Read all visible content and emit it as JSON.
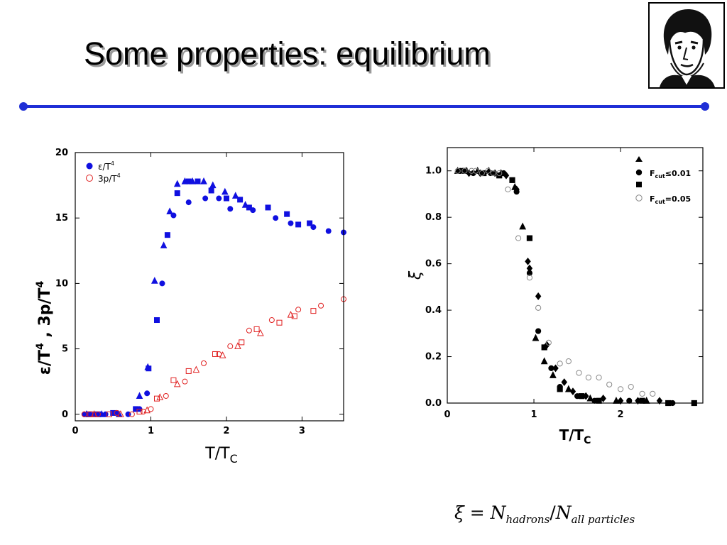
{
  "slide": {
    "title": "Some properties: equilibrium",
    "formula": {
      "lhs": "ξ",
      "equals": "=",
      "n1": "N",
      "sub1": "hadrons",
      "slash": "/",
      "n2": "N",
      "sub2": "all  particles"
    },
    "accent_color": "#1f2fd6",
    "logo_icon": "goethe-portrait-icon"
  },
  "chart_data": [
    {
      "type": "scatter",
      "xlabel": "T/T",
      "xlabel_sub": "C",
      "ylabel": "ε/T , 3p/T",
      "ylabel_sup": "4",
      "xlim": [
        0,
        3.55
      ],
      "ylim": [
        -0.5,
        20
      ],
      "xticks": [
        0,
        1,
        2,
        3
      ],
      "yticks": [
        0,
        5,
        10,
        15,
        20
      ],
      "legend_position": "top-left",
      "grid": false,
      "series": [
        {
          "name": "ε/T",
          "name_sup": "4",
          "color": "#1010e0",
          "filled": true,
          "groups": [
            {
              "marker": "circle",
              "points": [
                [
                  0.12,
                  0
                ],
                [
                  0.25,
                  0
                ],
                [
                  0.4,
                  0
                ],
                [
                  0.55,
                  0.1
                ],
                [
                  0.7,
                  0
                ],
                [
                  0.85,
                  0.4
                ],
                [
                  0.95,
                  1.6
                ],
                [
                  1.15,
                  10
                ],
                [
                  1.3,
                  15.2
                ],
                [
                  1.5,
                  16.2
                ],
                [
                  1.72,
                  16.5
                ],
                [
                  1.9,
                  16.5
                ],
                [
                  2.05,
                  15.7
                ],
                [
                  2.35,
                  15.6
                ],
                [
                  2.65,
                  15
                ],
                [
                  2.85,
                  14.6
                ],
                [
                  3.15,
                  14.3
                ],
                [
                  3.35,
                  14
                ],
                [
                  3.55,
                  13.9
                ]
              ]
            },
            {
              "marker": "square",
              "points": [
                [
                  0.18,
                  0
                ],
                [
                  0.3,
                  0
                ],
                [
                  0.5,
                  0.1
                ],
                [
                  0.8,
                  0.4
                ],
                [
                  0.97,
                  3.5
                ],
                [
                  1.08,
                  7.2
                ],
                [
                  1.22,
                  13.7
                ],
                [
                  1.35,
                  16.9
                ],
                [
                  1.5,
                  17.8
                ],
                [
                  1.62,
                  17.8
                ],
                [
                  1.8,
                  17.1
                ],
                [
                  2.0,
                  16.5
                ],
                [
                  2.18,
                  16.4
                ],
                [
                  2.3,
                  15.8
                ],
                [
                  2.55,
                  15.8
                ],
                [
                  2.8,
                  15.3
                ],
                [
                  2.95,
                  14.5
                ],
                [
                  3.1,
                  14.6
                ]
              ]
            },
            {
              "marker": "triangle",
              "points": [
                [
                  0.15,
                  0
                ],
                [
                  0.35,
                  0
                ],
                [
                  0.58,
                  0
                ],
                [
                  0.85,
                  1.4
                ],
                [
                  0.96,
                  3.6
                ],
                [
                  1.05,
                  10.2
                ],
                [
                  1.17,
                  12.9
                ],
                [
                  1.25,
                  15.5
                ],
                [
                  1.35,
                  17.6
                ],
                [
                  1.45,
                  17.8
                ],
                [
                  1.55,
                  17.8
                ],
                [
                  1.7,
                  17.8
                ],
                [
                  1.82,
                  17.5
                ],
                [
                  1.98,
                  17
                ],
                [
                  2.12,
                  16.7
                ],
                [
                  2.25,
                  16
                ]
              ]
            }
          ]
        },
        {
          "name": "3p/T",
          "name_sup": "4",
          "color": "#e02020",
          "filled": false,
          "groups": [
            {
              "marker": "circle",
              "points": [
                [
                  0.12,
                  0
                ],
                [
                  0.3,
                  0
                ],
                [
                  0.55,
                  0.1
                ],
                [
                  0.75,
                  0
                ],
                [
                  0.9,
                  0.2
                ],
                [
                  1.0,
                  0.4
                ],
                [
                  1.2,
                  1.4
                ],
                [
                  1.45,
                  2.5
                ],
                [
                  1.7,
                  3.9
                ],
                [
                  1.9,
                  4.6
                ],
                [
                  2.05,
                  5.2
                ],
                [
                  2.3,
                  6.4
                ],
                [
                  2.6,
                  7.2
                ],
                [
                  2.95,
                  8
                ],
                [
                  3.25,
                  8.3
                ],
                [
                  3.55,
                  8.8
                ]
              ]
            },
            {
              "marker": "square",
              "points": [
                [
                  0.2,
                  0
                ],
                [
                  0.45,
                  0
                ],
                [
                  0.85,
                  0.2
                ],
                [
                  1.08,
                  1.2
                ],
                [
                  1.3,
                  2.6
                ],
                [
                  1.5,
                  3.3
                ],
                [
                  1.85,
                  4.6
                ],
                [
                  2.2,
                  5.5
                ],
                [
                  2.4,
                  6.5
                ],
                [
                  2.7,
                  7
                ],
                [
                  2.9,
                  7.5
                ],
                [
                  3.15,
                  7.9
                ]
              ]
            },
            {
              "marker": "triangle",
              "points": [
                [
                  0.25,
                  0
                ],
                [
                  0.6,
                  0
                ],
                [
                  0.95,
                  0.3
                ],
                [
                  1.12,
                  1.3
                ],
                [
                  1.35,
                  2.3
                ],
                [
                  1.6,
                  3.4
                ],
                [
                  1.95,
                  4.5
                ],
                [
                  2.15,
                  5.2
                ],
                [
                  2.45,
                  6.2
                ],
                [
                  2.85,
                  7.6
                ]
              ]
            }
          ]
        }
      ]
    },
    {
      "type": "scatter",
      "xlabel": "T/T",
      "xlabel_sub": "C",
      "ylabel": "ξ",
      "xlim": [
        0,
        2.95
      ],
      "ylim": [
        0,
        1.1
      ],
      "xticks": [
        0,
        1,
        2
      ],
      "yticks": [
        "0.0",
        "0.2",
        "0.4",
        "0.6",
        "0.8",
        "1.0"
      ],
      "legend_position": "top-right",
      "grid": false,
      "legend": [
        {
          "marker": "triangle",
          "filled": true,
          "label": ""
        },
        {
          "marker": "circle",
          "filled": true,
          "label": "F",
          "sub": "cut",
          "suffix": "≤0.01"
        },
        {
          "marker": "square",
          "filled": true,
          "label": ""
        },
        {
          "marker": "circle",
          "filled": false,
          "label": "F",
          "sub": "cut",
          "suffix": "=0.05"
        }
      ],
      "series": [
        {
          "color": "#000000",
          "filled": true,
          "groups": [
            {
              "marker": "diamond",
              "points": [
                [
                  0.25,
                  0.99
                ],
                [
                  0.38,
                  0.99
                ],
                [
                  0.55,
                  0.99
                ],
                [
                  0.68,
                  0.98
                ],
                [
                  0.8,
                  0.92
                ],
                [
                  0.93,
                  0.61
                ],
                [
                  0.95,
                  0.58
                ],
                [
                  1.05,
                  0.46
                ],
                [
                  1.15,
                  0.25
                ],
                [
                  1.25,
                  0.15
                ],
                [
                  1.35,
                  0.09
                ],
                [
                  1.45,
                  0.05
                ],
                [
                  1.6,
                  0.03
                ],
                [
                  1.8,
                  0.02
                ],
                [
                  2.0,
                  0.01
                ],
                [
                  2.2,
                  0.01
                ],
                [
                  2.45,
                  0.01
                ]
              ]
            },
            {
              "marker": "circle",
              "points": [
                [
                  0.15,
                  1.0
                ],
                [
                  0.3,
                  0.99
                ],
                [
                  0.5,
                  0.99
                ],
                [
                  0.65,
                  0.99
                ],
                [
                  0.8,
                  0.91
                ],
                [
                  0.95,
                  0.56
                ],
                [
                  1.05,
                  0.31
                ],
                [
                  1.2,
                  0.15
                ],
                [
                  1.3,
                  0.07
                ],
                [
                  1.5,
                  0.03
                ],
                [
                  1.7,
                  0.01
                ],
                [
                  2.1,
                  0.01
                ],
                [
                  2.6,
                  0.0
                ]
              ]
            },
            {
              "marker": "square",
              "points": [
                [
                  0.2,
                  1.0
                ],
                [
                  0.42,
                  0.99
                ],
                [
                  0.6,
                  0.98
                ],
                [
                  0.75,
                  0.96
                ],
                [
                  0.95,
                  0.71
                ],
                [
                  1.12,
                  0.24
                ],
                [
                  1.3,
                  0.06
                ],
                [
                  1.55,
                  0.03
                ],
                [
                  1.75,
                  0.01
                ],
                [
                  2.25,
                  0.01
                ],
                [
                  2.55,
                  0.0
                ],
                [
                  2.85,
                  0.0
                ]
              ]
            },
            {
              "marker": "triangle",
              "points": [
                [
                  0.12,
                  1.0
                ],
                [
                  0.22,
                  1.0
                ],
                [
                  0.35,
                  1.0
                ],
                [
                  0.48,
                  1.0
                ],
                [
                  0.62,
                  0.99
                ],
                [
                  0.78,
                  0.93
                ],
                [
                  0.87,
                  0.76
                ],
                [
                  1.02,
                  0.28
                ],
                [
                  1.12,
                  0.18
                ],
                [
                  1.22,
                  0.12
                ],
                [
                  1.4,
                  0.06
                ],
                [
                  1.65,
                  0.02
                ],
                [
                  1.95,
                  0.01
                ],
                [
                  2.3,
                  0.01
                ]
              ]
            }
          ]
        },
        {
          "color": "#888888",
          "filled": false,
          "groups": [
            {
              "marker": "circle",
              "points": [
                [
                  0.12,
                  1.0
                ],
                [
                  0.2,
                  1.0
                ],
                [
                  0.28,
                  1.0
                ],
                [
                  0.33,
                  1.0
                ],
                [
                  0.4,
                  0.99
                ],
                [
                  0.47,
                  1.0
                ],
                [
                  0.53,
                  0.99
                ],
                [
                  0.6,
                  0.99
                ],
                [
                  0.7,
                  0.92
                ],
                [
                  0.82,
                  0.71
                ],
                [
                  0.95,
                  0.54
                ],
                [
                  1.05,
                  0.41
                ],
                [
                  1.17,
                  0.26
                ],
                [
                  1.3,
                  0.17
                ],
                [
                  1.4,
                  0.18
                ],
                [
                  1.52,
                  0.13
                ],
                [
                  1.63,
                  0.11
                ],
                [
                  1.75,
                  0.11
                ],
                [
                  1.87,
                  0.08
                ],
                [
                  2.0,
                  0.06
                ],
                [
                  2.12,
                  0.07
                ],
                [
                  2.25,
                  0.04
                ],
                [
                  2.37,
                  0.04
                ]
              ]
            }
          ]
        }
      ]
    }
  ]
}
